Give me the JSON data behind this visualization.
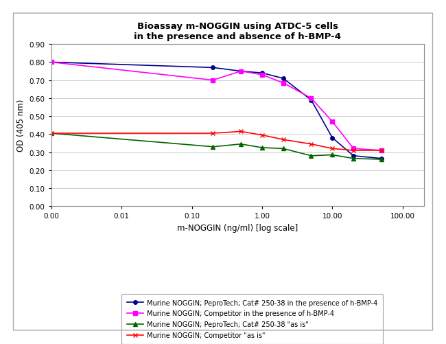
{
  "title_line1": "Bioassay m-NOGGIN using ATDC-5 cells",
  "title_line2": "in the presence and absence of h-BMP-4",
  "xlabel": "m-NOGGIN (ng/ml) [log scale]",
  "ylabel": "OD (405 nm)",
  "ylim": [
    0.0,
    0.9
  ],
  "yticks": [
    0.0,
    0.1,
    0.2,
    0.3,
    0.4,
    0.5,
    0.6,
    0.7,
    0.8,
    0.9
  ],
  "xtick_positions": [
    0.001,
    0.01,
    0.1,
    1.0,
    10.0,
    100.0
  ],
  "xtick_labels": [
    "0.00",
    "0.01",
    "0.10",
    "1.00",
    "10.00",
    "100.00"
  ],
  "series": [
    {
      "label": "Murine NOGGIN; PeproTech; Cat# 250-38 in the presence of h-BMP-4",
      "color": "#00008B",
      "marker": "o",
      "x": [
        0.001,
        0.2,
        0.5,
        1.0,
        2.0,
        5.0,
        10.0,
        20.0,
        50.0
      ],
      "y": [
        0.8,
        0.77,
        0.75,
        0.74,
        0.71,
        0.59,
        0.38,
        0.28,
        0.265
      ]
    },
    {
      "label": "Murine NOGGIN; Competitor in the presence of h-BMP-4",
      "color": "#FF00FF",
      "marker": "s",
      "x": [
        0.001,
        0.2,
        0.5,
        1.0,
        2.0,
        5.0,
        10.0,
        20.0,
        50.0
      ],
      "y": [
        0.8,
        0.7,
        0.75,
        0.73,
        0.685,
        0.6,
        0.47,
        0.32,
        0.31
      ]
    },
    {
      "label": "Murine NOGGIN; PeproTech; Cat# 250-38 \"as is\"",
      "color": "#006400",
      "marker": "^",
      "x": [
        0.001,
        0.2,
        0.5,
        1.0,
        2.0,
        5.0,
        10.0,
        20.0,
        50.0
      ],
      "y": [
        0.405,
        0.33,
        0.345,
        0.325,
        0.32,
        0.28,
        0.285,
        0.265,
        0.26
      ]
    },
    {
      "label": "Murine NOGGIN; Competitor \"as is\"",
      "color": "#FF0000",
      "marker": "x",
      "x": [
        0.001,
        0.2,
        0.5,
        1.0,
        2.0,
        5.0,
        10.0,
        20.0,
        50.0
      ],
      "y": [
        0.405,
        0.405,
        0.415,
        0.395,
        0.37,
        0.345,
        0.32,
        0.31,
        0.31
      ]
    }
  ],
  "background_color": "#FFFFFF",
  "plot_bg_color": "#FFFFFF",
  "grid_color": "#BBBBBB",
  "outer_border_color": "#AAAAAA",
  "legend_fontsize": 7,
  "title_fontsize": 9.5,
  "axis_label_fontsize": 8.5,
  "tick_fontsize": 7.5
}
